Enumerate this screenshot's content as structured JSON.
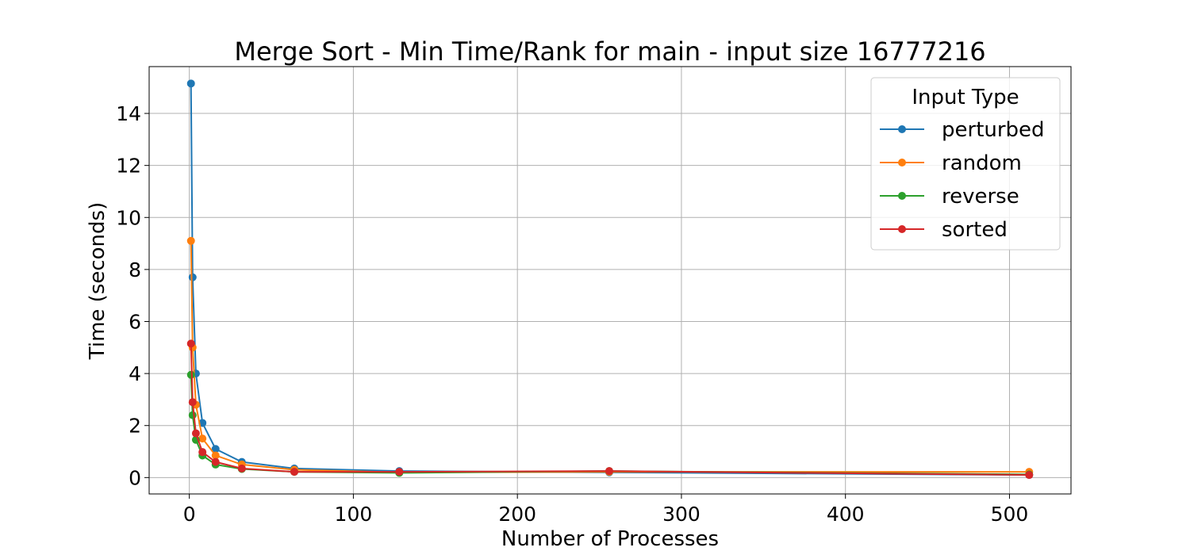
{
  "chart_data": {
    "type": "line",
    "title": "Merge Sort - Min Time/Rank for main - input size 16777216",
    "xlabel": "Number of Processes",
    "ylabel": "Time (seconds)",
    "xlim": [
      -24.5,
      537.5
    ],
    "ylim": [
      -0.63,
      15.8
    ],
    "xticks": [
      0,
      100,
      200,
      300,
      400,
      500
    ],
    "yticks": [
      0,
      2,
      4,
      6,
      8,
      10,
      12,
      14
    ],
    "grid": true,
    "legend": {
      "title": "Input Type",
      "position": "top-right"
    },
    "x": [
      1,
      2,
      4,
      8,
      16,
      32,
      64,
      128,
      256,
      512
    ],
    "series": [
      {
        "name": "perturbed",
        "color": "#1f77b4",
        "values": [
          15.15,
          7.7,
          4.0,
          2.1,
          1.1,
          0.6,
          0.35,
          0.25,
          0.2,
          0.1
        ]
      },
      {
        "name": "random",
        "color": "#ff7f0e",
        "values": [
          9.1,
          5.0,
          2.8,
          1.5,
          0.85,
          0.5,
          0.3,
          0.2,
          0.22,
          0.22
        ]
      },
      {
        "name": "reverse",
        "color": "#2ca02c",
        "values": [
          3.95,
          2.4,
          1.45,
          0.85,
          0.5,
          0.33,
          0.22,
          0.18,
          0.25,
          0.12
        ]
      },
      {
        "name": "sorted",
        "color": "#d62728",
        "values": [
          5.15,
          2.9,
          1.7,
          0.98,
          0.6,
          0.35,
          0.22,
          0.22,
          0.25,
          0.1
        ]
      }
    ]
  }
}
